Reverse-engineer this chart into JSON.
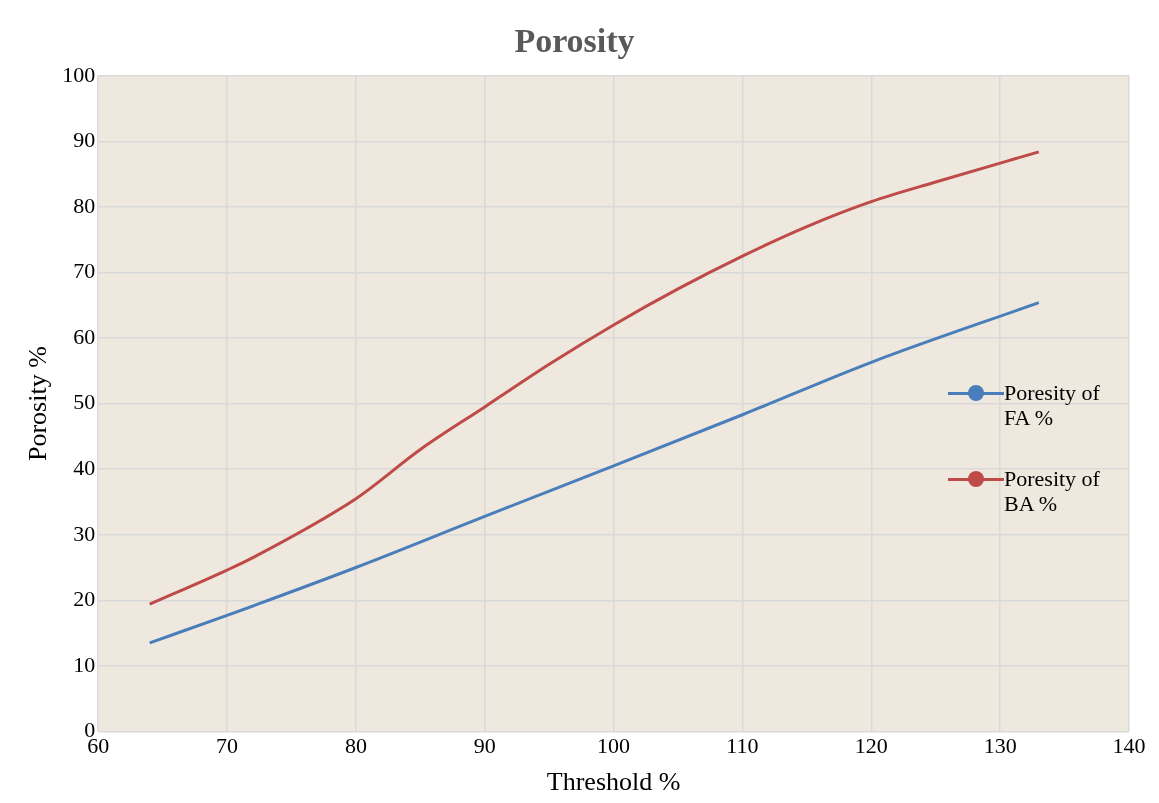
{
  "chart_data": {
    "type": "line",
    "title": "Porosity",
    "xlabel": "Threshold %",
    "ylabel": "Porosity %",
    "xlim": [
      60,
      140
    ],
    "xticks": [
      60,
      70,
      80,
      90,
      100,
      110,
      120,
      130,
      140
    ],
    "ylim": [
      0,
      100
    ],
    "yticks": [
      0,
      10,
      20,
      30,
      40,
      50,
      60,
      70,
      80,
      90,
      100
    ],
    "grid": true,
    "legend": "right",
    "marker": "none",
    "line_style": "solid",
    "series": [
      {
        "name": "Poresity of FA %",
        "color": "#4a7ebb",
        "x": [
          64,
          70,
          80,
          90,
          100,
          110,
          120,
          133
        ],
        "values": [
          13.5,
          17.7,
          25,
          32.8,
          40.5,
          48.3,
          56.3,
          65.4
        ]
      },
      {
        "name": "Poresity of BA %",
        "color": "#be4b48",
        "x": [
          64,
          70,
          72,
          80,
          85,
          90,
          95,
          100,
          105,
          110,
          115,
          120,
          125,
          133
        ],
        "values": [
          19.4,
          24.6,
          26.5,
          35.5,
          43,
          49.5,
          56,
          62,
          67.5,
          72.5,
          77,
          80.8,
          83.8,
          88.4
        ]
      }
    ]
  }
}
